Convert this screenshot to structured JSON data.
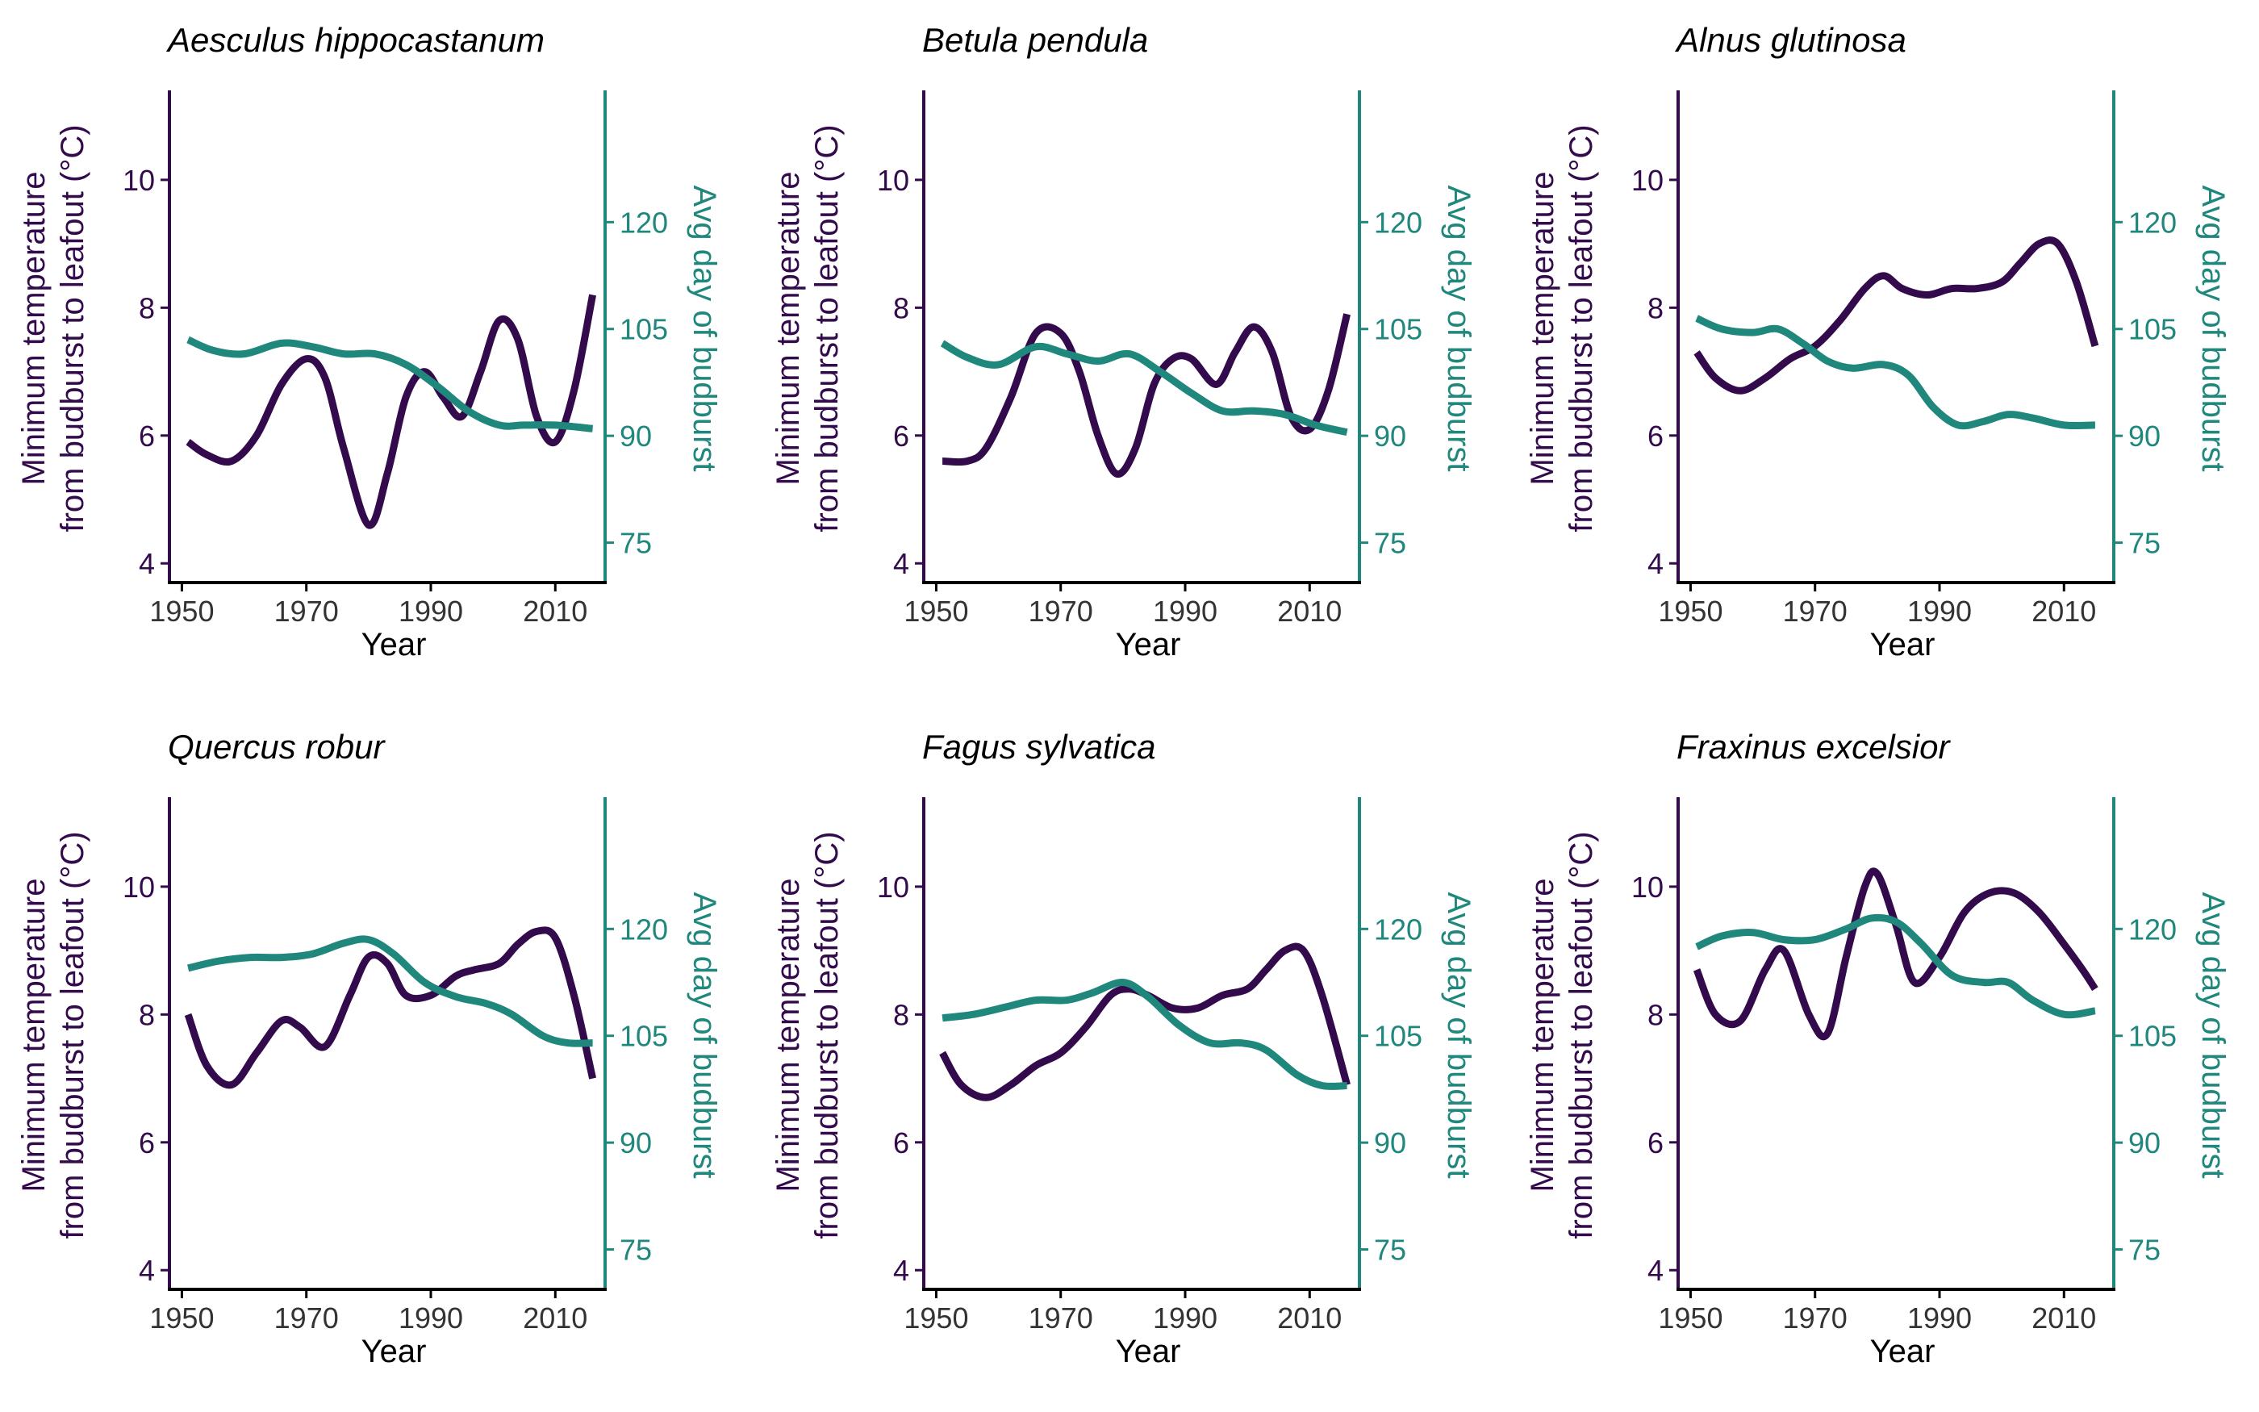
{
  "colors": {
    "temperature": "#330a4b",
    "budburst": "#1f877c",
    "axis": "#000000"
  },
  "axes": {
    "xlabel": "Year",
    "ylabel_left_line1": "Minimum temperature",
    "ylabel_left_line2": "from budburst to leafout (°C)",
    "ylabel_right": "Avg day of budburst",
    "xticks": [
      "1950",
      "1970",
      "1990",
      "2010"
    ],
    "yticks_left": [
      "4",
      "6",
      "8",
      "10"
    ],
    "yticks_right": [
      "75",
      "90",
      "105",
      "120"
    ]
  },
  "chart_data": [
    {
      "type": "line",
      "title": "Aesculus hippocastanum",
      "xlim": [
        1948,
        2018
      ],
      "ylim_left": [
        3.7,
        11.4
      ],
      "ylim_right": [
        69.4,
        138.5
      ],
      "series": [
        {
          "axis": "left",
          "x": [
            1951,
            1954,
            1958,
            1962,
            1966,
            1970,
            1973,
            1976,
            1980,
            1983,
            1986,
            1989,
            1992,
            1995,
            1998,
            2001,
            2004,
            2007,
            2010,
            2013,
            2016
          ],
          "values": [
            5.9,
            5.7,
            5.6,
            6.0,
            6.8,
            7.2,
            6.9,
            5.8,
            4.6,
            5.4,
            6.6,
            7.0,
            6.6,
            6.3,
            7.0,
            7.8,
            7.5,
            6.3,
            5.9,
            6.7,
            8.2
          ]
        },
        {
          "axis": "right",
          "x": [
            1951,
            1955,
            1960,
            1966,
            1971,
            1976,
            1981,
            1986,
            1991,
            1996,
            2001,
            2005,
            2010,
            2016
          ],
          "values": [
            103.5,
            102.0,
            101.5,
            103.0,
            102.5,
            101.5,
            101.5,
            100.0,
            97.0,
            93.5,
            91.5,
            91.5,
            91.5,
            91.0
          ]
        }
      ]
    },
    {
      "type": "line",
      "title": "Betula pendula",
      "xlim": [
        1948,
        2018
      ],
      "ylim_left": [
        3.7,
        11.4
      ],
      "ylim_right": [
        69.4,
        138.5
      ],
      "series": [
        {
          "axis": "left",
          "x": [
            1951,
            1955,
            1958,
            1962,
            1966,
            1970,
            1973,
            1976,
            1979,
            1982,
            1985,
            1988,
            1991,
            1995,
            1998,
            2001,
            2004,
            2007,
            2010,
            2013,
            2016
          ],
          "values": [
            5.6,
            5.6,
            5.8,
            6.6,
            7.6,
            7.6,
            7.0,
            6.0,
            5.4,
            5.8,
            6.8,
            7.2,
            7.2,
            6.8,
            7.3,
            7.7,
            7.3,
            6.3,
            6.1,
            6.7,
            7.9
          ]
        },
        {
          "axis": "right",
          "x": [
            1951,
            1955,
            1960,
            1966,
            1971,
            1976,
            1981,
            1986,
            1991,
            1996,
            2001,
            2006,
            2011,
            2016
          ],
          "values": [
            103.0,
            101.0,
            100.0,
            102.5,
            101.5,
            100.5,
            101.5,
            99.0,
            96.0,
            93.5,
            93.5,
            93.0,
            91.5,
            90.5
          ]
        }
      ]
    },
    {
      "type": "line",
      "title": "Alnus glutinosa",
      "xlim": [
        1948,
        2018
      ],
      "ylim_left": [
        3.7,
        11.4
      ],
      "ylim_right": [
        69.4,
        138.5
      ],
      "series": [
        {
          "axis": "left",
          "x": [
            1951,
            1954,
            1958,
            1962,
            1966,
            1970,
            1974,
            1978,
            1981,
            1984,
            1988,
            1992,
            1996,
            2000,
            2003,
            2006,
            2009,
            2012,
            2015
          ],
          "values": [
            7.3,
            6.9,
            6.7,
            6.9,
            7.2,
            7.4,
            7.8,
            8.3,
            8.5,
            8.3,
            8.2,
            8.3,
            8.3,
            8.4,
            8.7,
            9.0,
            9.0,
            8.4,
            7.4
          ]
        },
        {
          "axis": "right",
          "x": [
            1951,
            1955,
            1960,
            1964,
            1968,
            1972,
            1976,
            1981,
            1985,
            1989,
            1993,
            1997,
            2001,
            2005,
            2010,
            2015
          ],
          "values": [
            106.5,
            105.0,
            104.5,
            105.0,
            103.0,
            100.5,
            99.5,
            100.0,
            98.5,
            94.0,
            91.5,
            92.0,
            93.0,
            92.5,
            91.5,
            91.5
          ]
        }
      ]
    },
    {
      "type": "line",
      "title": "Quercus robur",
      "xlim": [
        1948,
        2018
      ],
      "ylim_left": [
        3.7,
        11.4
      ],
      "ylim_right": [
        69.4,
        138.5
      ],
      "series": [
        {
          "axis": "left",
          "x": [
            1951,
            1954,
            1958,
            1962,
            1966,
            1969,
            1973,
            1977,
            1980,
            1983,
            1986,
            1990,
            1994,
            1997,
            2001,
            2004,
            2007,
            2010,
            2013,
            2016
          ],
          "values": [
            8.0,
            7.2,
            6.9,
            7.4,
            7.9,
            7.8,
            7.5,
            8.3,
            8.9,
            8.8,
            8.3,
            8.3,
            8.6,
            8.7,
            8.8,
            9.1,
            9.3,
            9.2,
            8.3,
            7.0
          ]
        },
        {
          "axis": "right",
          "x": [
            1951,
            1956,
            1961,
            1966,
            1971,
            1976,
            1980,
            1984,
            1989,
            1994,
            1999,
            2003,
            2008,
            2012,
            2016
          ],
          "values": [
            114.5,
            115.5,
            116.0,
            116.0,
            116.5,
            118.0,
            118.5,
            116.5,
            112.5,
            110.5,
            109.5,
            108.0,
            105.0,
            104.0,
            104.0
          ]
        }
      ]
    },
    {
      "type": "line",
      "title": "Fagus sylvatica",
      "xlim": [
        1948,
        2018
      ],
      "ylim_left": [
        3.7,
        11.4
      ],
      "ylim_right": [
        69.4,
        138.5
      ],
      "series": [
        {
          "axis": "left",
          "x": [
            1951,
            1954,
            1958,
            1962,
            1966,
            1970,
            1974,
            1978,
            1981,
            1984,
            1988,
            1992,
            1996,
            2000,
            2003,
            2006,
            2009,
            2012,
            2016
          ],
          "values": [
            7.4,
            6.9,
            6.7,
            6.9,
            7.2,
            7.4,
            7.8,
            8.3,
            8.4,
            8.3,
            8.1,
            8.1,
            8.3,
            8.4,
            8.7,
            9.0,
            9.0,
            8.3,
            6.9
          ]
        },
        {
          "axis": "right",
          "x": [
            1951,
            1956,
            1961,
            1966,
            1971,
            1975,
            1980,
            1984,
            1989,
            1994,
            1999,
            2003,
            2008,
            2012,
            2016
          ],
          "values": [
            107.5,
            108.0,
            109.0,
            110.0,
            110.0,
            111.0,
            112.5,
            110.5,
            106.5,
            104.0,
            104.0,
            103.0,
            99.5,
            98.0,
            98.0
          ]
        }
      ]
    },
    {
      "type": "line",
      "title": "Fraxinus excelsior",
      "xlim": [
        1948,
        2018
      ],
      "ylim_left": [
        3.7,
        11.4
      ],
      "ylim_right": [
        69.4,
        138.5
      ],
      "series": [
        {
          "axis": "left",
          "x": [
            1951,
            1954,
            1958,
            1962,
            1965,
            1969,
            1972,
            1975,
            1978,
            1980,
            1983,
            1986,
            1990,
            1994,
            1998,
            2002,
            2006,
            2010,
            2013,
            2015
          ],
          "values": [
            8.7,
            8.0,
            7.9,
            8.7,
            9.0,
            8.0,
            7.7,
            8.9,
            10.0,
            10.2,
            9.4,
            8.5,
            8.9,
            9.6,
            9.9,
            9.9,
            9.6,
            9.1,
            8.7,
            8.4
          ]
        },
        {
          "axis": "right",
          "x": [
            1951,
            1955,
            1960,
            1965,
            1970,
            1975,
            1979,
            1983,
            1987,
            1992,
            1997,
            2001,
            2005,
            2010,
            2015
          ],
          "values": [
            117.5,
            119.0,
            119.5,
            118.5,
            118.5,
            120.0,
            121.5,
            121.0,
            118.0,
            113.5,
            112.5,
            112.5,
            110.0,
            108.0,
            108.5
          ]
        }
      ]
    }
  ]
}
